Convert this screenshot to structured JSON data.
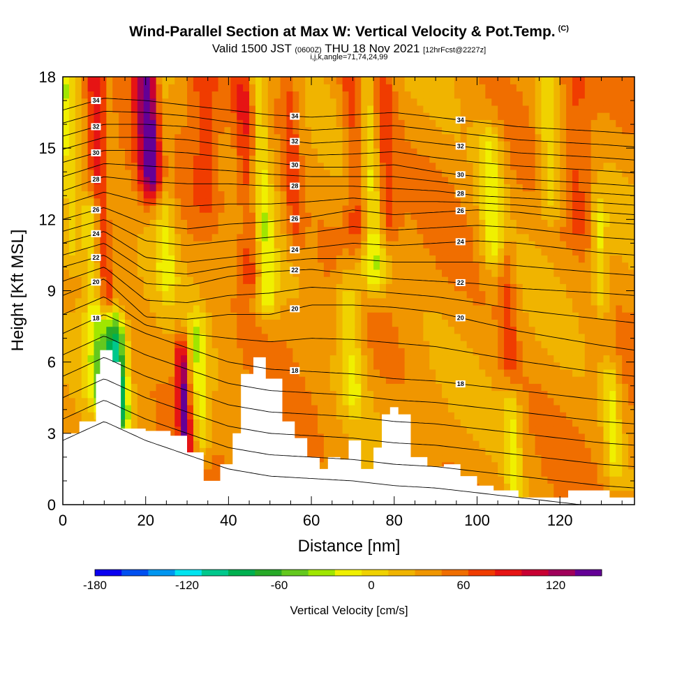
{
  "header": {
    "title": "Wind-Parallel Section at Max W: Vertical Velocity & Pot.Temp.",
    "copyright": "(C)",
    "valid_prefix": "Valid 1500 JST",
    "valid_utc": "(0600Z)",
    "valid_date": "THU 18 Nov 2021",
    "forecast": "[12hrFcst@2227z]",
    "subtitle": "i,j,k,angle=71,74,24,99"
  },
  "chart_data": {
    "type": "heatmap",
    "xlabel": "Distance [nm]",
    "ylabel": "Height [Kft MSL]",
    "xlim": [
      0,
      138
    ],
    "ylim": [
      0,
      18
    ],
    "x_ticks": [
      0,
      20,
      40,
      60,
      80,
      100,
      120
    ],
    "x_tick_labels": [
      "0",
      "20",
      "40",
      "60",
      "80",
      "100",
      "120"
    ],
    "y_ticks": [
      0,
      3,
      6,
      9,
      12,
      15,
      18
    ],
    "y_tick_labels": [
      "0",
      "3",
      "6",
      "9",
      "12",
      "15",
      "18"
    ],
    "colorbar": {
      "label": "Vertical Velocity [cm/s]",
      "tick_values": [
        -180,
        -120,
        -60,
        0,
        60,
        120
      ],
      "tick_labels": [
        "-180",
        "-120",
        "-60",
        "0",
        "60",
        "120"
      ],
      "bounds": [
        -180,
        150
      ],
      "step": 15,
      "colors": [
        "#0a00f0",
        "#0050f0",
        "#0096f0",
        "#00e4f0",
        "#00c88c",
        "#00b050",
        "#28aa28",
        "#64c81e",
        "#a0e600",
        "#f0f000",
        "#f0d200",
        "#f0b400",
        "#f09600",
        "#f06e00",
        "#f03c00",
        "#e61414",
        "#c80032",
        "#a0005a",
        "#640096"
      ]
    },
    "terrain": [
      [
        0,
        3
      ],
      [
        4,
        3.5
      ],
      [
        8,
        5.5
      ],
      [
        9,
        6.5
      ],
      [
        12,
        6
      ],
      [
        14,
        3.2
      ],
      [
        20,
        3.1
      ],
      [
        26,
        2.9
      ],
      [
        30,
        2.2
      ],
      [
        34,
        1.0
      ],
      [
        38,
        1.7
      ],
      [
        41,
        3.0
      ],
      [
        43,
        5.5
      ],
      [
        46,
        6.2
      ],
      [
        49,
        5.3
      ],
      [
        53,
        3.5
      ],
      [
        56,
        2.8
      ],
      [
        59,
        2.0
      ],
      [
        62,
        1.5
      ],
      [
        64,
        2.0
      ],
      [
        67,
        1.9
      ],
      [
        69,
        2.7
      ],
      [
        72,
        1.5
      ],
      [
        75,
        2.4
      ],
      [
        77,
        3.8
      ],
      [
        79,
        4.1
      ],
      [
        81,
        3.8
      ],
      [
        84,
        2.0
      ],
      [
        88,
        1.6
      ],
      [
        92,
        1.7
      ],
      [
        96,
        1.2
      ],
      [
        100,
        0.8
      ],
      [
        104,
        0.6
      ],
      [
        110,
        0.3
      ],
      [
        118,
        0.3
      ],
      [
        122,
        0.6
      ],
      [
        126,
        0.6
      ],
      [
        132,
        0.3
      ],
      [
        138,
        0.3
      ]
    ],
    "isentropes": {
      "levels": [
        18,
        20,
        22,
        24,
        26,
        28,
        30,
        32,
        34
      ],
      "heights_at_x": {
        "x": [
          0,
          10,
          20,
          30,
          40,
          50,
          60,
          70,
          80,
          90,
          100,
          110,
          120,
          130,
          138
        ],
        "18": [
          7.2,
          8.0,
          7.2,
          6.6,
          6.0,
          5.7,
          5.6,
          5.5,
          5.3,
          5.2,
          5.0,
          4.8,
          4.6,
          4.4,
          4.3
        ],
        "20": [
          8.8,
          9.5,
          7.9,
          7.8,
          8.0,
          8.0,
          8.4,
          8.4,
          8.3,
          8.1,
          7.7,
          7.3,
          7.0,
          6.7,
          6.5
        ],
        "22": [
          10.0,
          10.5,
          9.3,
          9.2,
          9.6,
          9.8,
          9.9,
          9.7,
          9.5,
          9.4,
          9.3,
          9.1,
          9.0,
          8.9,
          8.8
        ],
        "24": [
          11.0,
          11.5,
          10.4,
          10.2,
          10.4,
          10.6,
          10.8,
          11.0,
          10.9,
          11.0,
          11.1,
          11.0,
          10.8,
          10.6,
          10.5
        ],
        "26": [
          12.0,
          12.5,
          11.8,
          11.6,
          11.8,
          11.9,
          12.1,
          12.4,
          12.2,
          12.3,
          12.4,
          12.3,
          12.1,
          11.9,
          11.8
        ],
        "28": [
          13.2,
          13.8,
          13.6,
          13.5,
          13.5,
          13.4,
          13.4,
          13.4,
          13.3,
          13.2,
          13.0,
          12.9,
          12.8,
          12.7,
          12.6
        ],
        "30": [
          14.4,
          14.9,
          14.9,
          14.8,
          14.6,
          14.4,
          14.2,
          14.2,
          14.3,
          14.0,
          13.8,
          13.7,
          13.6,
          13.5,
          13.4
        ],
        "32": [
          15.5,
          16.0,
          16.0,
          15.9,
          15.6,
          15.4,
          15.2,
          15.3,
          15.4,
          15.2,
          15.0,
          14.8,
          14.7,
          14.6,
          14.5
        ],
        "34": [
          16.6,
          17.1,
          17.0,
          16.8,
          16.6,
          16.4,
          16.3,
          16.4,
          16.5,
          16.3,
          16.1,
          15.9,
          15.8,
          15.7,
          15.6
        ]
      }
    },
    "velocity_features": [
      {
        "x": 11.5,
        "w": 3,
        "ybot": 9,
        "ytop": 18,
        "v": 130
      },
      {
        "x": 13.5,
        "w": 2.5,
        "ybot": 4,
        "ytop": 18,
        "v": -110
      },
      {
        "x": 9,
        "w": 3,
        "ybot": 5,
        "ytop": 12,
        "v": -60
      },
      {
        "x": 21.5,
        "w": 3,
        "ybot": 14,
        "ytop": 18,
        "v": 100
      },
      {
        "x": 25,
        "w": 2.5,
        "ybot": 10,
        "ytop": 18,
        "v": -40
      },
      {
        "x": 29.5,
        "w": 1.5,
        "ybot": 3,
        "ytop": 6,
        "v": 85
      },
      {
        "x": 33.5,
        "w": 2,
        "ybot": 3,
        "ytop": 7,
        "v": -45
      },
      {
        "x": 49,
        "w": 2.5,
        "ybot": 9,
        "ytop": 18,
        "v": -55
      },
      {
        "x": 46,
        "w": 3,
        "ybot": 10,
        "ytop": 17,
        "v": 45
      },
      {
        "x": 56,
        "w": 2,
        "ybot": 12,
        "ytop": 17,
        "v": 30
      },
      {
        "x": 72,
        "w": 3,
        "ybot": 12,
        "ytop": 18,
        "v": 55
      },
      {
        "x": 75,
        "w": 3,
        "ybot": 10,
        "ytop": 18,
        "v": -65
      },
      {
        "x": 70,
        "w": 3,
        "ybot": 5,
        "ytop": 9,
        "v": -40
      },
      {
        "x": 78,
        "w": 3,
        "ybot": 12,
        "ytop": 18,
        "v": 40
      },
      {
        "x": 104,
        "w": 3,
        "ybot": 11,
        "ytop": 15,
        "v": -45
      },
      {
        "x": 108,
        "w": 2,
        "ybot": 6,
        "ytop": 10,
        "v": 30
      },
      {
        "x": 109,
        "w": 2,
        "ybot": 1,
        "ytop": 4,
        "v": -40
      },
      {
        "x": 118,
        "w": 3,
        "ybot": 13,
        "ytop": 17,
        "v": -40
      },
      {
        "x": 130,
        "w": 2,
        "ybot": 9,
        "ytop": 12,
        "v": -40
      },
      {
        "x": 133,
        "w": 2,
        "ybot": 2,
        "ytop": 5,
        "v": -40
      },
      {
        "x": 2,
        "w": 2.5,
        "ybot": 11,
        "ytop": 18,
        "v": -40
      },
      {
        "x": 35,
        "w": 4,
        "ybot": 13,
        "ytop": 18,
        "v": 30
      },
      {
        "x": 125,
        "w": 4,
        "ybot": 12,
        "ytop": 18,
        "v": 25
      }
    ],
    "grid": false
  }
}
